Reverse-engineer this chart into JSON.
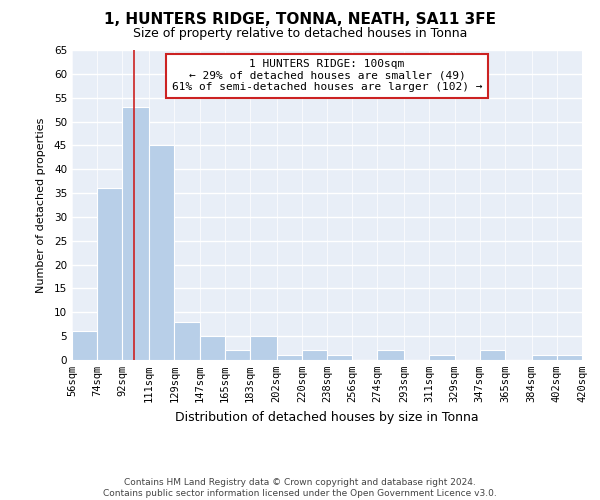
{
  "title": "1, HUNTERS RIDGE, TONNA, NEATH, SA11 3FE",
  "subtitle": "Size of property relative to detached houses in Tonna",
  "xlabel": "Distribution of detached houses by size in Tonna",
  "ylabel": "Number of detached properties",
  "bin_edges": [
    56,
    74,
    92,
    111,
    129,
    147,
    165,
    183,
    202,
    220,
    238,
    256,
    274,
    293,
    311,
    329,
    347,
    365,
    384,
    402,
    420
  ],
  "counts": [
    6,
    36,
    53,
    45,
    8,
    5,
    2,
    5,
    1,
    2,
    1,
    0,
    2,
    0,
    1,
    0,
    2,
    0,
    1,
    1
  ],
  "bar_color": "#b8cfe8",
  "vline_x": 100,
  "vline_color": "#cc2222",
  "ylim": [
    0,
    65
  ],
  "yticks": [
    0,
    5,
    10,
    15,
    20,
    25,
    30,
    35,
    40,
    45,
    50,
    55,
    60,
    65
  ],
  "annotation_line1": "1 HUNTERS RIDGE: 100sqm",
  "annotation_line2": "← 29% of detached houses are smaller (49)",
  "annotation_line3": "61% of semi-detached houses are larger (102) →",
  "annotation_box_edgecolor": "#cc2222",
  "footer_line1": "Contains HM Land Registry data © Crown copyright and database right 2024.",
  "footer_line2": "Contains public sector information licensed under the Open Government Licence v3.0.",
  "bg_color": "#ffffff",
  "plot_bg_color": "#e8eef7",
  "grid_color": "#ffffff",
  "title_fontsize": 11,
  "subtitle_fontsize": 9,
  "xlabel_fontsize": 9,
  "ylabel_fontsize": 8,
  "tick_fontsize": 7.5,
  "footer_fontsize": 6.5,
  "annot_fontsize": 8
}
